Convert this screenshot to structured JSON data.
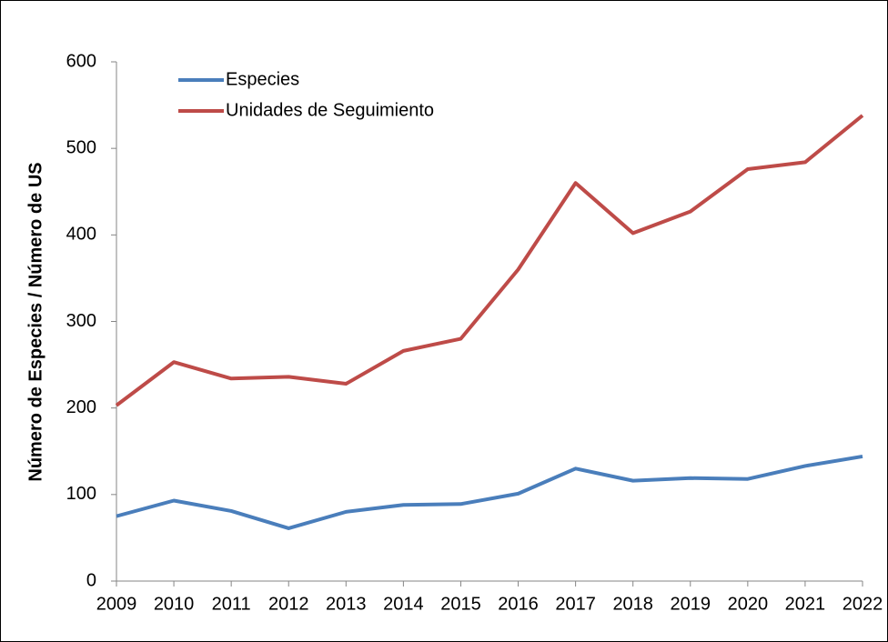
{
  "chart_data": {
    "type": "line",
    "y_label": "Número de Especies / Número de US",
    "x": [
      2009,
      2010,
      2011,
      2012,
      2013,
      2014,
      2015,
      2016,
      2017,
      2018,
      2019,
      2020,
      2021,
      2022
    ],
    "xlim": [
      2009,
      2022
    ],
    "xticks": [
      2009,
      2010,
      2011,
      2012,
      2013,
      2014,
      2015,
      2016,
      2017,
      2018,
      2019,
      2020,
      2021,
      2022
    ],
    "ylim": [
      0,
      600
    ],
    "yticks": [
      0,
      100,
      200,
      300,
      400,
      500,
      600
    ],
    "legend": "upper left",
    "series": [
      {
        "name": "Especies",
        "color": "#4a7ebb",
        "values": [
          75,
          93,
          81,
          61,
          80,
          88,
          89,
          101,
          130,
          116,
          119,
          118,
          133,
          144
        ]
      },
      {
        "name": "Unidades de Seguimiento",
        "color": "#be4b48",
        "values": [
          203,
          253,
          234,
          236,
          228,
          266,
          280,
          360,
          460,
          402,
          427,
          476,
          484,
          538
        ]
      }
    ]
  }
}
